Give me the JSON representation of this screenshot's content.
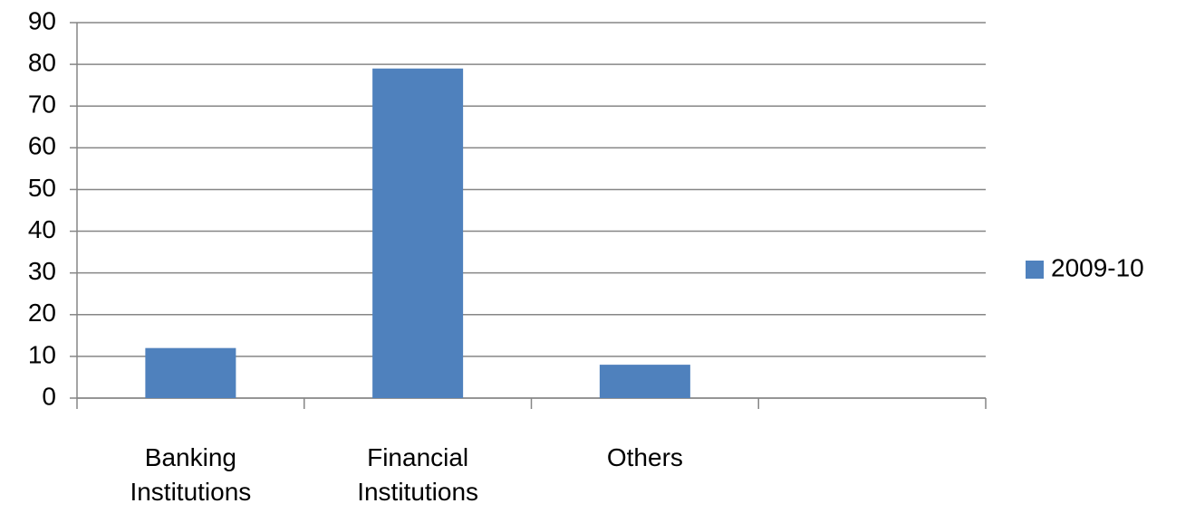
{
  "chart_data": {
    "type": "bar",
    "categories": [
      "Banking Institutions",
      "Financial Institutions",
      "Others",
      null
    ],
    "series": [
      {
        "name": "2009-10",
        "color": "#4f81bd",
        "values": [
          12,
          79,
          8,
          null
        ]
      }
    ],
    "ylim": [
      0,
      90
    ],
    "yticks": [
      0,
      10,
      20,
      30,
      40,
      50,
      60,
      70,
      80,
      90
    ],
    "grid": true,
    "legend": "right"
  }
}
